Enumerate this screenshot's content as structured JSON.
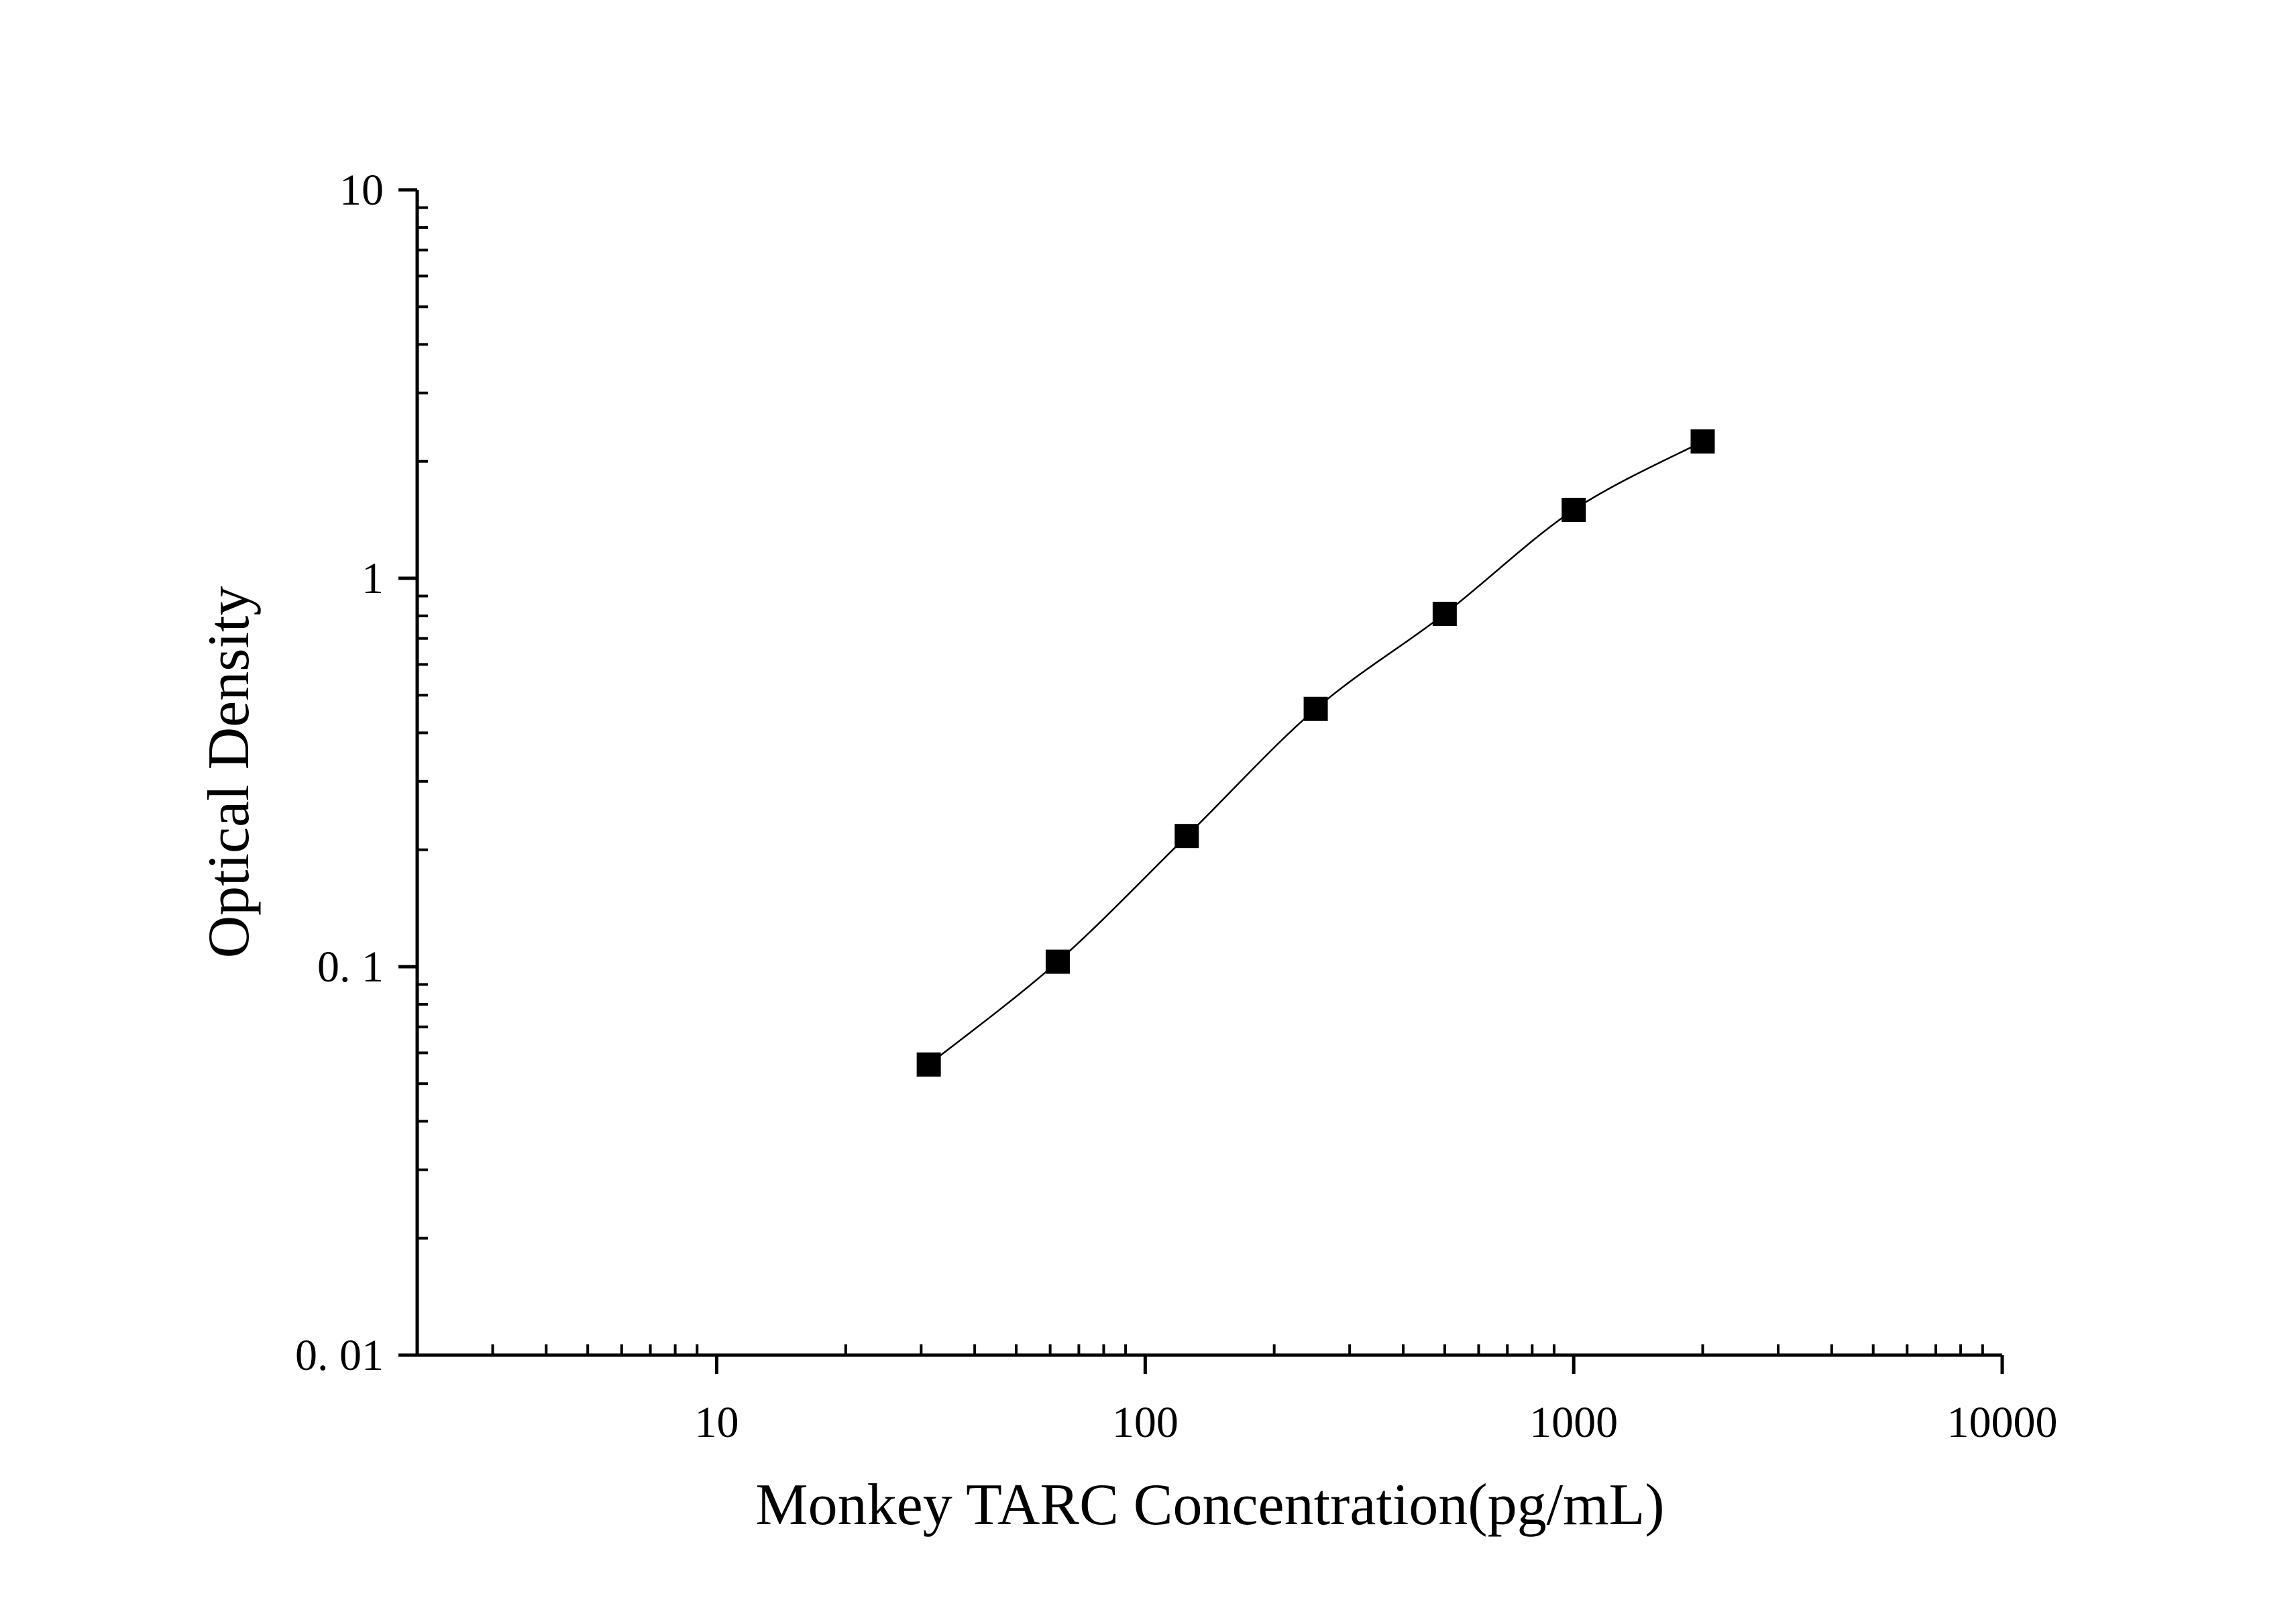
{
  "chart_data": {
    "type": "scatter",
    "x_label": "Monkey TARC Concentration(pg/mL)",
    "y_label": "Optical Density",
    "x_log": true,
    "y_log": true,
    "xlim": [
      2,
      10000
    ],
    "ylim": [
      0.01,
      10
    ],
    "xticks": [
      10,
      100,
      1000,
      10000
    ],
    "yticks": [
      {
        "value": 0.01,
        "label": "0. 01"
      },
      {
        "value": 0.1,
        "label": "0. 1"
      },
      1,
      10
    ],
    "fit_line": true,
    "x": [
      31.25,
      62.5,
      125,
      250,
      500,
      1000,
      2000
    ],
    "series": [
      {
        "color": "#000000",
        "values": [
          0.056,
          0.103,
          0.217,
          0.461,
          0.81,
          1.5,
          2.25
        ]
      }
    ]
  }
}
